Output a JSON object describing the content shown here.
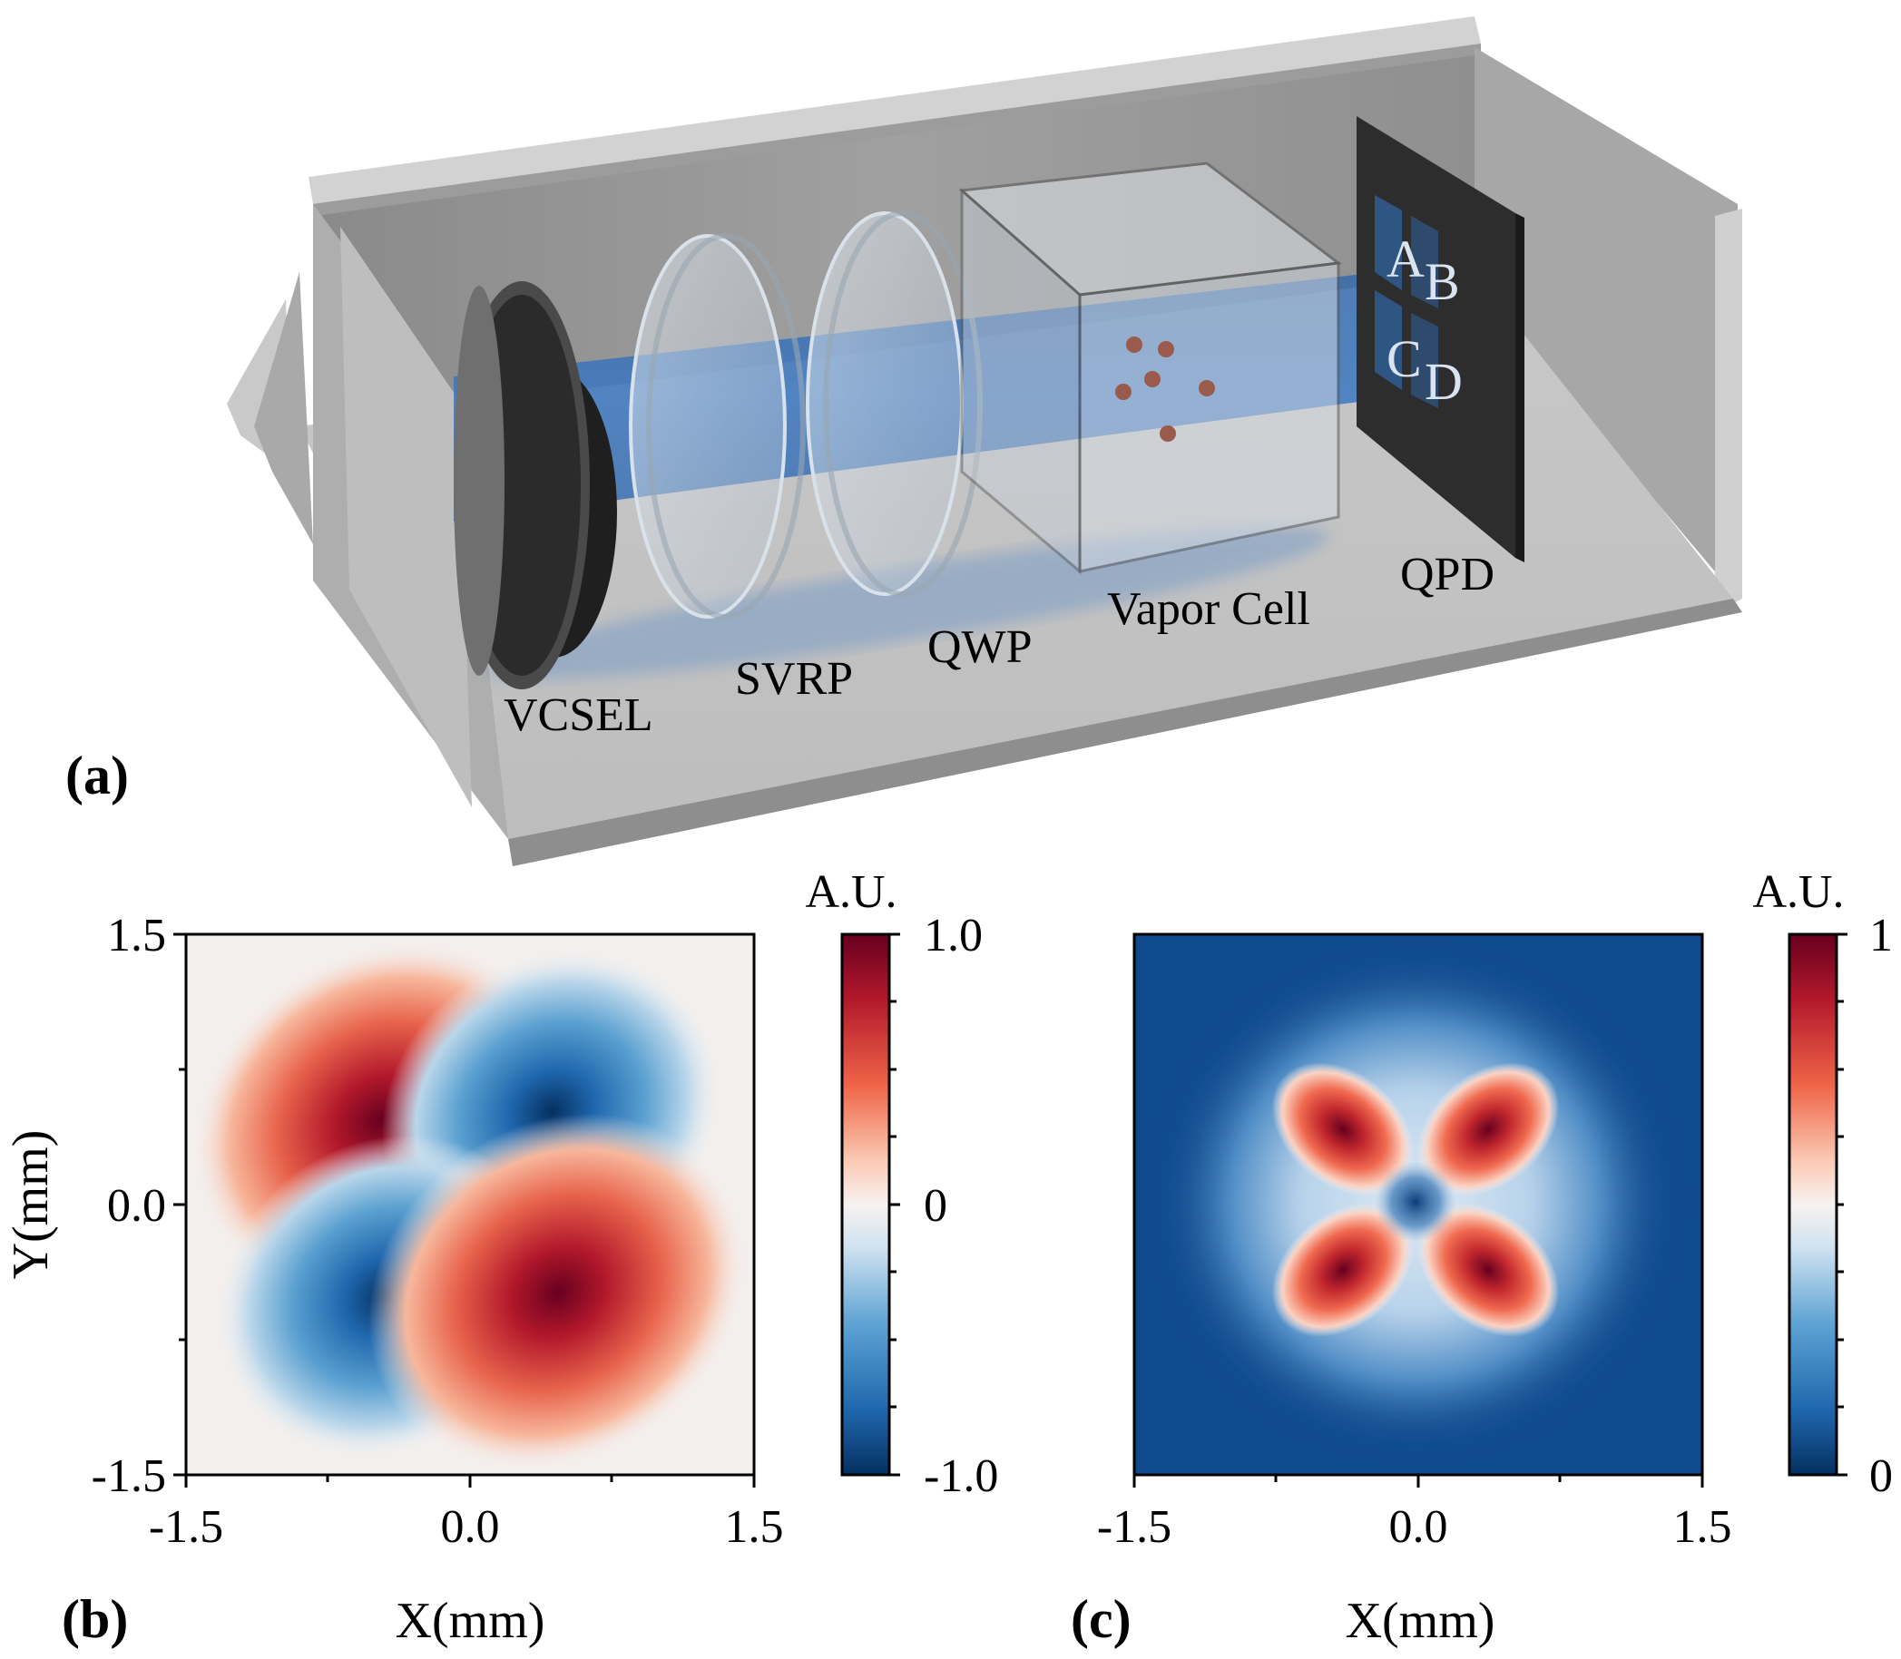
{
  "panels": {
    "a": {
      "label": "(a)",
      "components": {
        "vcsel": "VCSEL",
        "svrp": "SVRP",
        "qwp": "QWP",
        "vapor_cell": "Vapor Cell",
        "qpd": "QPD"
      },
      "qpd_quadrants": [
        "A",
        "B",
        "C",
        "D"
      ],
      "colors": {
        "beam": "#3d78c2",
        "housing": "#b3b3b3",
        "qpd": "#2d2d2d",
        "atoms": "#9a5a4c"
      }
    },
    "b": {
      "label": "(b)",
      "xlabel": "X(mm)",
      "ylabel": "Y(mm)",
      "colorbar_title": "A.U.",
      "colorbar_ticks": [
        "1.0",
        "0",
        "-1.0"
      ]
    },
    "c": {
      "label": "(c)",
      "xlabel": "X(mm)",
      "colorbar_title": "A.U.",
      "colorbar_ticks": [
        "1",
        "0"
      ]
    }
  },
  "chart_data": [
    {
      "type": "heatmap",
      "panel": "b",
      "xlabel": "X(mm)",
      "ylabel": "Y(mm)",
      "xlim": [
        -1.5,
        1.5
      ],
      "ylim": [
        -1.5,
        1.5
      ],
      "xticks": [
        "-1.5",
        "0.0",
        "1.5"
      ],
      "yticks": [
        "1.5",
        "0.0",
        "-1.5"
      ],
      "colorbar": {
        "title": "A.U.",
        "range": [
          -1.0,
          1.0
        ],
        "ticks": [
          "1.0",
          "0",
          "-1.0"
        ],
        "colormap": "RdBu_r"
      },
      "lobes": [
        {
          "x": -0.5,
          "y": 0.45,
          "value": 1.0
        },
        {
          "x": 0.45,
          "y": 0.45,
          "value": -0.8
        },
        {
          "x": -0.45,
          "y": -0.45,
          "value": -0.8
        },
        {
          "x": 0.5,
          "y": -0.45,
          "value": 1.0
        }
      ]
    },
    {
      "type": "heatmap",
      "panel": "c",
      "xlabel": "X(mm)",
      "xlim": [
        -1.5,
        1.5
      ],
      "ylim": [
        -1.5,
        1.5
      ],
      "xticks": [
        "-1.5",
        "0.0",
        "1.5"
      ],
      "colorbar": {
        "title": "A.U.",
        "range": [
          0,
          1
        ],
        "ticks": [
          "1",
          "0"
        ],
        "colormap": "RdBu_r"
      },
      "lobes": [
        {
          "x": -0.4,
          "y": 0.4,
          "value": 1
        },
        {
          "x": 0.4,
          "y": 0.4,
          "value": 1
        },
        {
          "x": -0.4,
          "y": -0.4,
          "value": 1
        },
        {
          "x": 0.4,
          "y": -0.4,
          "value": 1
        }
      ]
    }
  ]
}
